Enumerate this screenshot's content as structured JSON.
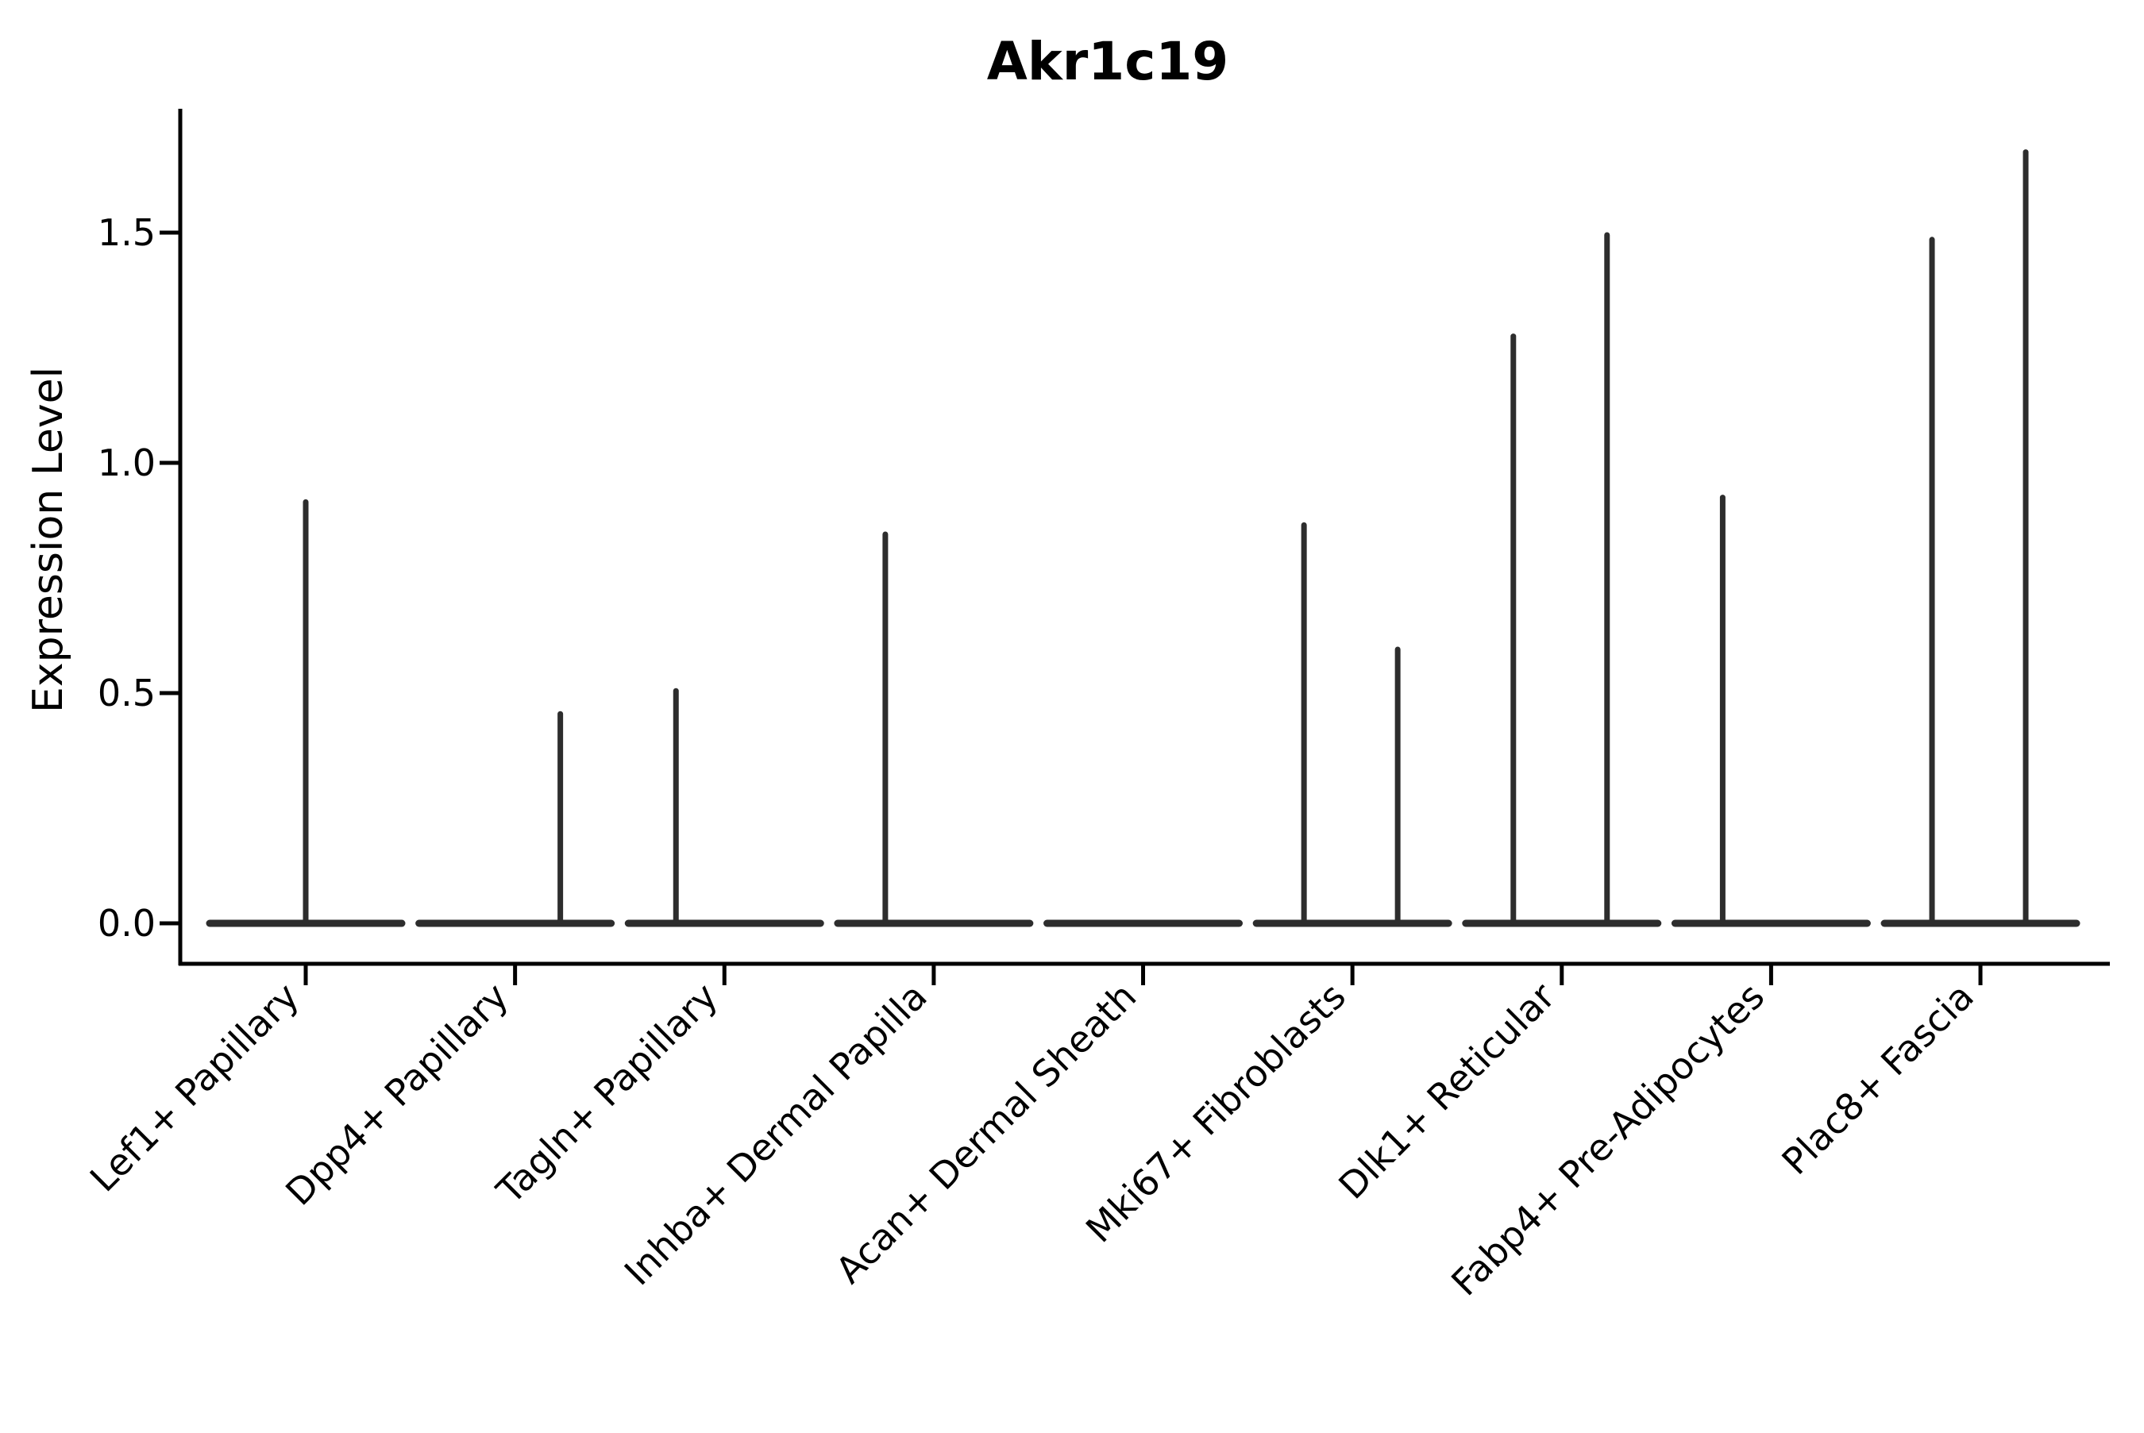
{
  "chart_data": {
    "type": "violin",
    "title": "Akr1c19",
    "ylabel": "Expression Level",
    "xlabel": "",
    "legend": "none",
    "grid": false,
    "background": "#ffffff",
    "axis_color": "#000000",
    "violin_color": "#2d2d2d",
    "y_ticks": [
      "0.0",
      "0.5",
      "1.0",
      "1.5"
    ],
    "y_tick_values": [
      0.0,
      0.5,
      1.0,
      1.5
    ],
    "ylim": [
      -0.09,
      1.78
    ],
    "violin_base_value": 0.0,
    "categories": [
      {
        "label": "Lef1+ Papillary",
        "violins": [
          {
            "position": "center",
            "max": 0.92
          }
        ]
      },
      {
        "label": "Dpp4+ Papillary",
        "violins": [
          {
            "position": "right",
            "max": 0.46
          }
        ]
      },
      {
        "label": "Tagln+ Papillary",
        "violins": [
          {
            "position": "left",
            "max": 0.51
          }
        ]
      },
      {
        "label": "Inhba+ Dermal Papilla",
        "violins": [
          {
            "position": "left",
            "max": 0.85
          }
        ]
      },
      {
        "label": "Acan+ Dermal Sheath",
        "violins": []
      },
      {
        "label": "Mki67+ Fibroblasts",
        "violins": [
          {
            "position": "left",
            "max": 0.87
          },
          {
            "position": "right",
            "max": 0.6
          }
        ]
      },
      {
        "label": "Dlk1+ Reticular",
        "violins": [
          {
            "position": "left",
            "max": 1.28
          },
          {
            "position": "right",
            "max": 1.5
          }
        ]
      },
      {
        "label": "Fabp4+ Pre-Adipocytes",
        "violins": [
          {
            "position": "left",
            "max": 0.93
          }
        ]
      },
      {
        "label": "Plac8+ Fascia",
        "violins": [
          {
            "position": "left",
            "max": 1.49
          },
          {
            "position": "right",
            "max": 1.68
          }
        ]
      }
    ]
  }
}
